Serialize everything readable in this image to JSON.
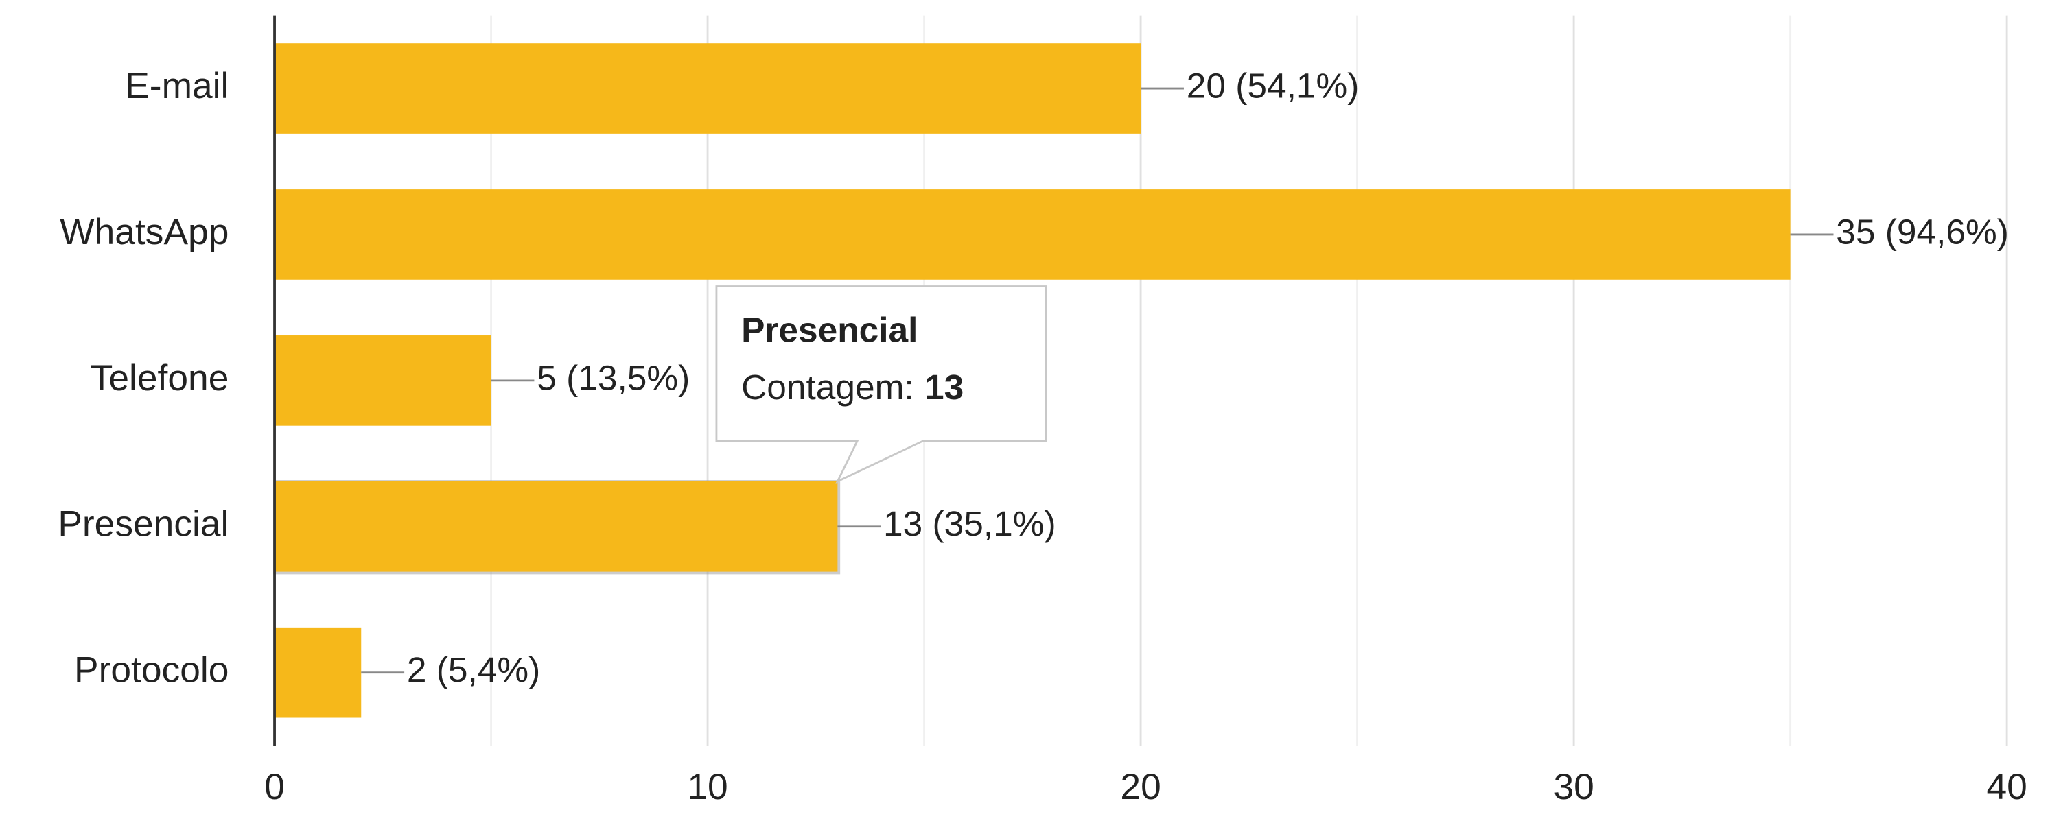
{
  "chart_data": {
    "type": "bar",
    "orientation": "horizontal",
    "categories": [
      "E-mail",
      "WhatsApp",
      "Telefone",
      "Presencial",
      "Protocolo"
    ],
    "values": [
      20,
      35,
      5,
      13,
      2
    ],
    "value_labels": [
      "20 (54,1%)",
      "35 (94,6%)",
      "5 (13,5%)",
      "13 (35,1%)",
      "2 (5,4%)"
    ],
    "color": "#f6b81a",
    "xlim": [
      0,
      40
    ],
    "xticks": [
      0,
      10,
      20,
      30,
      40
    ],
    "xminorticks": [
      5,
      15,
      25,
      35
    ],
    "grid": true,
    "tooltip": {
      "title": "Presencial",
      "label": "Contagem:",
      "value": 13,
      "category_index": 3
    }
  }
}
